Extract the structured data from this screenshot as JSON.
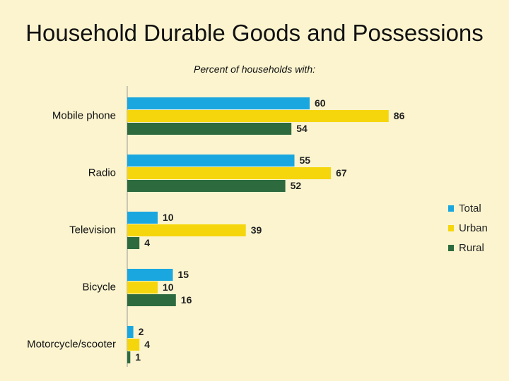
{
  "chart_data": {
    "type": "bar",
    "orientation": "horizontal",
    "title": "Household Durable Goods and Possessions",
    "subtitle": "Percent of households with:",
    "categories": [
      "Mobile phone",
      "Radio",
      "Television",
      "Bicycle",
      "Motorcycle/scooter"
    ],
    "series": [
      {
        "name": "Total",
        "color": "#1aa7e0",
        "values": [
          60,
          55,
          10,
          15,
          2
        ]
      },
      {
        "name": "Urban",
        "color": "#f5d60c",
        "values": [
          86,
          67,
          39,
          10,
          4
        ]
      },
      {
        "name": "Rural",
        "color": "#2d6b3f",
        "values": [
          54,
          52,
          4,
          16,
          1
        ]
      }
    ],
    "xlim": [
      0,
      100
    ],
    "grid": false,
    "legend": "right"
  }
}
